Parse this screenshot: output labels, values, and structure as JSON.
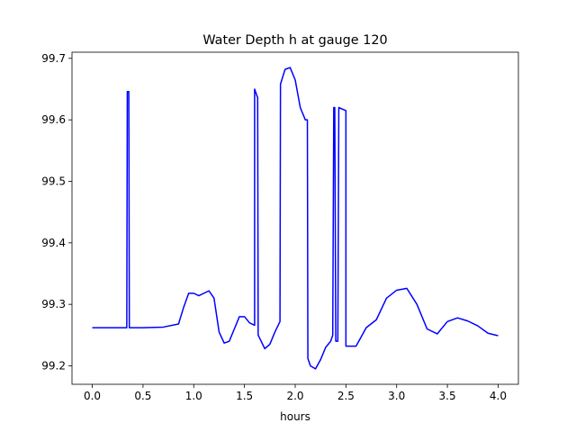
{
  "chart_data": {
    "type": "line",
    "title": "Water Depth h at gauge 120",
    "xlabel": "hours",
    "ylabel": "",
    "xlim": [
      -0.2,
      4.2
    ],
    "ylim": [
      99.17,
      99.71
    ],
    "xticks": [
      0.0,
      0.5,
      1.0,
      1.5,
      2.0,
      2.5,
      3.0,
      3.5,
      4.0
    ],
    "xtick_labels": [
      "0.0",
      "0.5",
      "1.0",
      "1.5",
      "2.0",
      "2.5",
      "3.0",
      "3.5",
      "4.0"
    ],
    "yticks": [
      99.2,
      99.3,
      99.4,
      99.5,
      99.6,
      99.7
    ],
    "ytick_labels": [
      "99.2",
      "99.3",
      "99.4",
      "99.5",
      "99.6",
      "99.7"
    ],
    "grid": false,
    "series": [
      {
        "color": "#0000ff",
        "x": [
          0.0,
          0.2,
          0.34,
          0.345,
          0.36,
          0.365,
          0.5,
          0.7,
          0.85,
          0.9,
          0.95,
          1.0,
          1.05,
          1.1,
          1.15,
          1.2,
          1.25,
          1.3,
          1.35,
          1.4,
          1.45,
          1.5,
          1.55,
          1.6,
          1.6,
          1.63,
          1.635,
          1.7,
          1.75,
          1.8,
          1.85,
          1.855,
          1.9,
          1.95,
          2.0,
          2.05,
          2.1,
          2.12,
          2.125,
          2.15,
          2.2,
          2.25,
          2.3,
          2.35,
          2.37,
          2.38,
          2.39,
          2.4,
          2.42,
          2.43,
          2.5,
          2.5,
          2.6,
          2.7,
          2.8,
          2.9,
          3.0,
          3.1,
          3.2,
          3.3,
          3.4,
          3.5,
          3.6,
          3.7,
          3.8,
          3.9,
          4.0
        ],
        "y": [
          99.262,
          99.262,
          99.262,
          99.646,
          99.646,
          99.262,
          99.262,
          99.263,
          99.268,
          99.295,
          99.318,
          99.318,
          99.314,
          99.318,
          99.322,
          99.31,
          99.255,
          99.237,
          99.24,
          99.26,
          99.28,
          99.28,
          99.27,
          99.266,
          99.65,
          99.636,
          99.25,
          99.228,
          99.235,
          99.255,
          99.272,
          99.658,
          99.682,
          99.685,
          99.665,
          99.62,
          99.6,
          99.6,
          99.212,
          99.2,
          99.195,
          99.21,
          99.23,
          99.24,
          99.25,
          99.62,
          99.62,
          99.24,
          99.24,
          99.62,
          99.615,
          99.232,
          99.232,
          99.262,
          99.275,
          99.31,
          99.323,
          99.326,
          99.3,
          99.26,
          99.252,
          99.272,
          99.278,
          99.273,
          99.265,
          99.253,
          99.249
        ]
      }
    ]
  }
}
